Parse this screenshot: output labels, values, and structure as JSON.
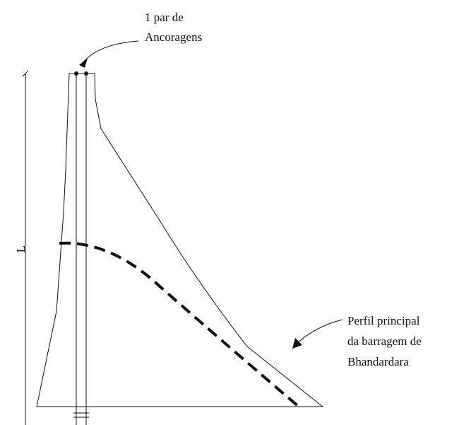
{
  "labels": {
    "anchors_line1": "1 par de",
    "anchors_line2": "Ancoragens",
    "length": "L",
    "profile_line1": "Perfil principal",
    "profile_line2": "da barragem de",
    "profile_line3": "Bhandardara"
  }
}
